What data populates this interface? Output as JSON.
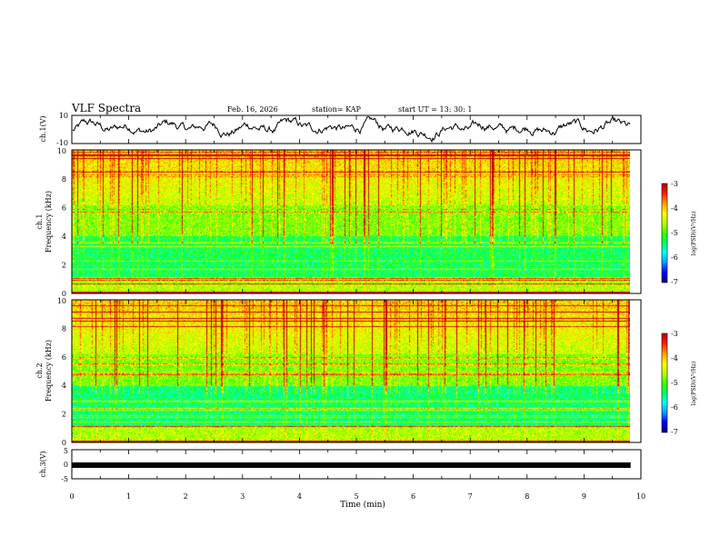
{
  "chart_data": {
    "type": "heatmap",
    "header": {
      "title": "VLF Spectra",
      "date": "Feb. 16, 2026",
      "station": "station= KAP",
      "start": "start  UT  =   13: 30: 1"
    },
    "x_axis": {
      "label": "Time  (min)",
      "range": [
        0,
        10
      ],
      "ticks": [
        "0",
        "1",
        "2",
        "3",
        "4",
        "5",
        "6",
        "7",
        "8",
        "9",
        "10"
      ],
      "data_end": 9.82
    },
    "waveform_ch1": {
      "ylabel": "ch.1(V)",
      "ylim": [
        -10,
        10
      ],
      "ticks": [
        "10",
        "-10"
      ]
    },
    "spectrogram_ch1": {
      "ylabel_channel": "ch.1",
      "ylabel": "Frequency (kHz)",
      "ylim": [
        0,
        10
      ],
      "yticks": [
        "0",
        "2",
        "4",
        "6",
        "8",
        "10"
      ],
      "colorbar": {
        "label": "log(PSD)(V²/Hz)",
        "range": [
          -7,
          -3
        ],
        "ticks": [
          "-3",
          "-4",
          "-5",
          "-6",
          "-7"
        ]
      }
    },
    "spectrogram_ch2": {
      "ylabel_channel": "ch.2",
      "ylabel": "Frequency (kHz)",
      "ylim": [
        0,
        10
      ],
      "yticks": [
        "0",
        "2",
        "4",
        "6",
        "8",
        "10"
      ],
      "colorbar": {
        "label": "log(PSD)(V²/Hz)",
        "range": [
          -7,
          -3
        ],
        "ticks": [
          "-3",
          "-4",
          "-5",
          "-6",
          "-7"
        ]
      }
    },
    "waveform_ch3": {
      "ylabel": "ch.3(V)",
      "ylim": [
        -5,
        5
      ],
      "ticks": [
        "5",
        "0",
        "-5"
      ],
      "constant_value": -0.3
    },
    "palette": [
      "#000080",
      "#0000ff",
      "#00a0ff",
      "#00ffff",
      "#00ff60",
      "#40ff00",
      "#c0ff00",
      "#ffff00",
      "#ffa000",
      "#ff2000",
      "#c00000",
      "#ffffff"
    ]
  }
}
